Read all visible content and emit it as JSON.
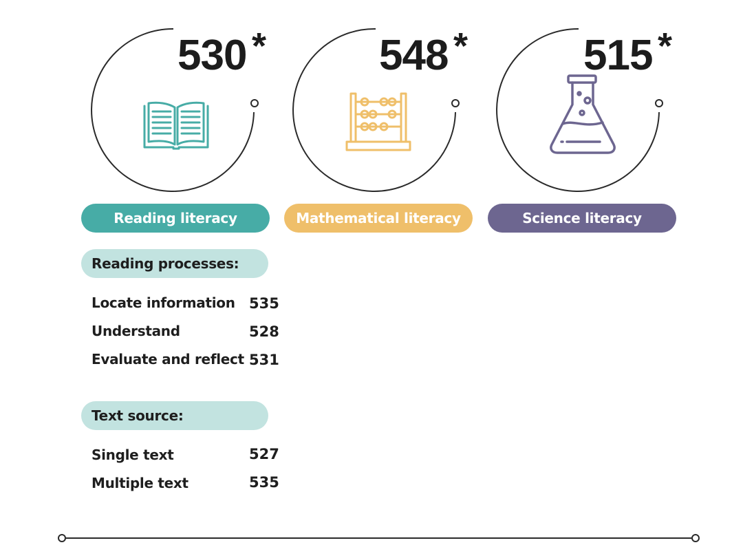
{
  "subjects": [
    {
      "score": "530",
      "star": "*",
      "label": "Reading literacy",
      "color": "#47aca6",
      "icon": "open-book-icon"
    },
    {
      "score": "548",
      "star": "*",
      "label": "Mathematical literacy",
      "color": "#efbf6a",
      "icon": "abacus-icon"
    },
    {
      "score": "515",
      "star": "*",
      "label": "Science literacy",
      "color": "#6d6690",
      "icon": "flask-icon"
    }
  ],
  "reading_processes": {
    "heading": "Reading processes:",
    "items": [
      {
        "label": "Locate information",
        "value": "535"
      },
      {
        "label": "Understand",
        "value": "528"
      },
      {
        "label": "Evaluate and reflect",
        "value": "531"
      }
    ]
  },
  "text_source": {
    "heading": "Text source:",
    "items": [
      {
        "label": "Single text",
        "value": "527"
      },
      {
        "label": "Multiple text",
        "value": "535"
      }
    ]
  }
}
